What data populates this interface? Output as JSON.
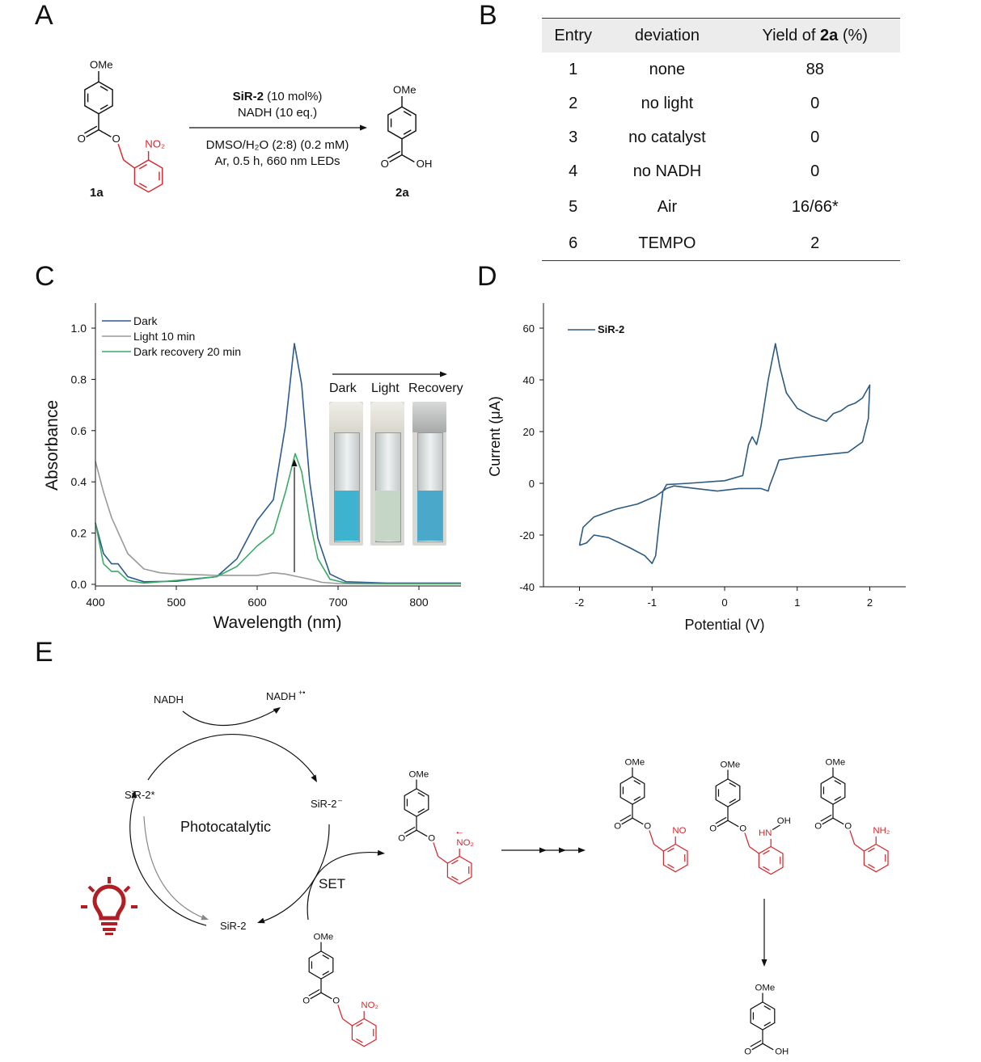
{
  "panels": {
    "a": "A",
    "b": "B",
    "c": "C",
    "d": "D",
    "e": "E"
  },
  "scheme_a": {
    "reactant_label": "1a",
    "product_label": "2a",
    "conditions": {
      "catalyst_name": "SiR-2",
      "catalyst_amount": " (10 mol%)",
      "reductant": "NADH (10 eq.)",
      "solvent": "DMSO/H₂O (2:8) (0.2 mM)",
      "other": "Ar, 0.5 h, 660 nm LEDs"
    },
    "atoms": {
      "ome": "OMe",
      "o": "O",
      "oh": "OH",
      "no2": "NO₂",
      "no": "NO",
      "hn": "HN",
      "nh2": "NH₂",
      "radical_anion": "•–"
    }
  },
  "table_b": {
    "headers": [
      "Entry",
      "deviation",
      "Yield of ",
      "2a",
      " (%)"
    ],
    "rows": [
      [
        "1",
        "none",
        "88"
      ],
      [
        "2",
        "no light",
        "0"
      ],
      [
        "3",
        "no catalyst",
        "0"
      ],
      [
        "4",
        "no NADH",
        "0"
      ],
      [
        "5",
        "Air",
        "16/66*"
      ],
      [
        "6",
        "TEMPO",
        "2"
      ]
    ]
  },
  "vials": {
    "labels": [
      "Dark",
      "Light",
      "Recovery"
    ],
    "liquid_colors": [
      "#3db3cf",
      "#c6d6c6",
      "#4aa9cb"
    ]
  },
  "chart_data": [
    {
      "type": "line",
      "xlabel": "Wavelength (nm)",
      "ylabel": "Absorbance",
      "xlim": [
        400,
        852
      ],
      "ylim": [
        0,
        1.1
      ],
      "xticks": [
        400,
        500,
        600,
        700,
        800
      ],
      "yticks": [
        0.0,
        0.2,
        0.4,
        0.6,
        0.8,
        1.0
      ],
      "ytick_labels": [
        "0.0",
        "0.2",
        "0.4",
        "0.6",
        "0.8",
        "1.0"
      ],
      "grid": false,
      "legend": "top-left",
      "series": [
        {
          "name": "Dark",
          "color": "#2d5a8e",
          "x": [
            400,
            410,
            420,
            428,
            440,
            460,
            500,
            550,
            575,
            600,
            620,
            635,
            646,
            655,
            665,
            675,
            690,
            710,
            760,
            852
          ],
          "y": [
            0.24,
            0.12,
            0.08,
            0.08,
            0.03,
            0.01,
            0.012,
            0.03,
            0.1,
            0.25,
            0.33,
            0.62,
            0.94,
            0.78,
            0.4,
            0.18,
            0.04,
            0.01,
            0.005,
            0.005
          ]
        },
        {
          "name": "Light 10 min",
          "color": "#9a9a9a",
          "x": [
            400,
            410,
            420,
            440,
            460,
            480,
            500,
            550,
            600,
            620,
            635,
            650,
            665,
            680,
            700,
            760,
            852
          ],
          "y": [
            0.48,
            0.36,
            0.26,
            0.12,
            0.06,
            0.045,
            0.04,
            0.035,
            0.035,
            0.045,
            0.04,
            0.03,
            0.02,
            0.008,
            0.003,
            0.002,
            0.002
          ]
        },
        {
          "name": "Dark recovery 20 min",
          "color": "#3aaa68",
          "x": [
            400,
            410,
            420,
            428,
            440,
            460,
            500,
            550,
            575,
            600,
            620,
            635,
            647,
            655,
            665,
            675,
            690,
            710,
            760,
            852
          ],
          "y": [
            0.24,
            0.08,
            0.05,
            0.05,
            0.015,
            0.005,
            0.015,
            0.03,
            0.07,
            0.15,
            0.2,
            0.36,
            0.51,
            0.44,
            0.25,
            0.1,
            0.02,
            0.005,
            0.003,
            0.003
          ]
        }
      ]
    },
    {
      "type": "line",
      "xlabel": "Potential (V)",
      "ylabel": "Current (μA)",
      "xlim": [
        -2.5,
        2.5
      ],
      "ylim": [
        -40,
        70
      ],
      "xticks": [
        -2,
        -1,
        0,
        1,
        2
      ],
      "yticks": [
        -40,
        -20,
        0,
        20,
        40,
        60
      ],
      "grid": false,
      "legend": "top-left",
      "series": [
        {
          "name": "SiR-2",
          "color": "#2d5a80",
          "x": [
            -2,
            -1.9,
            -1.8,
            -1.6,
            -1.3,
            -1.1,
            -1.0,
            -0.95,
            -0.9,
            -0.85,
            -0.8,
            -0.5,
            0,
            0.25,
            0.33,
            0.38,
            0.44,
            0.5,
            0.6,
            0.7,
            0.76,
            0.85,
            1.0,
            1.2,
            1.4,
            1.5,
            1.6,
            1.7,
            1.8,
            1.9,
            2.0,
            1.98,
            1.9,
            1.7,
            1.0,
            0.75,
            0.7,
            0.62,
            0.6,
            0.5,
            0.2,
            -0.1,
            -0.4,
            -0.7,
            -0.8,
            -0.95,
            -1.2,
            -1.5,
            -1.8,
            -1.95,
            -2
          ],
          "y": [
            -24,
            -23,
            -20,
            -21,
            -25,
            -28,
            -31,
            -28,
            -15,
            -3,
            -0.5,
            0,
            1,
            3,
            15,
            18,
            15,
            22,
            40,
            54,
            45,
            35,
            29,
            26,
            24,
            27,
            28,
            30,
            31,
            33,
            38,
            25,
            16,
            12,
            10,
            9,
            5,
            -1,
            -3,
            -2,
            -2,
            -3,
            -2,
            -1,
            -2,
            -5,
            -8,
            -10,
            -13,
            -17,
            -24
          ]
        }
      ]
    }
  ],
  "scheme_e": {
    "nadh": "NADH",
    "nadh_radical_cation": "NADH",
    "nadh_charge": "+•",
    "sir2_excited": "SiR-2*",
    "sir2_anion": "SiR-2",
    "anion_charge": "–",
    "sir2": "SiR-2",
    "cycle_label": "Photocatalytic",
    "set_label": "SET",
    "accent_red": "#d9262c",
    "bulb_color": "#b01f24",
    "bulb_icon": "lightbulb-icon"
  }
}
